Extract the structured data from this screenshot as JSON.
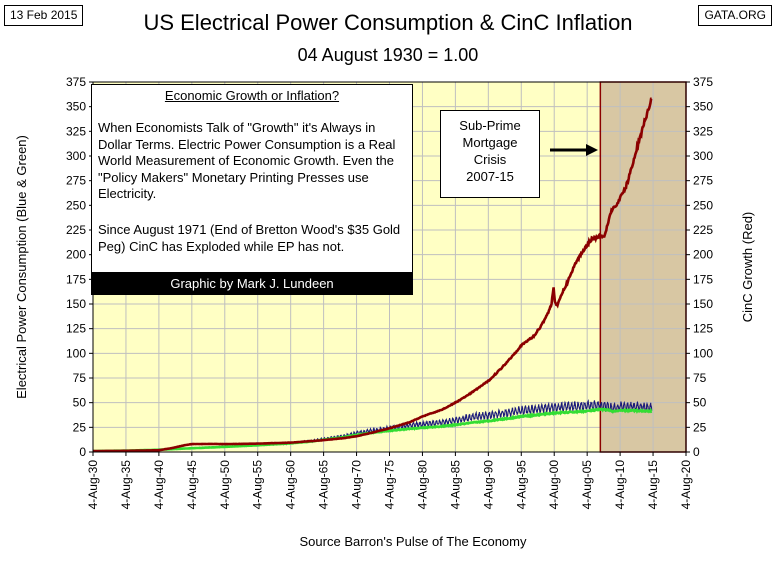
{
  "header": {
    "date": "13 Feb 2015",
    "site": "GATA.ORG",
    "title": "US Electrical Power Consumption & CinC Inflation",
    "subtitle": "04 August 1930 = 1.00"
  },
  "annotations": {
    "info_heading": "Economic Growth or Inflation?",
    "info_paragraph_1": "When Economists Talk of \"Growth\" it's Always in Dollar Terms.  Electric Power Consumption is a Real World Measurement of Economic Growth.  Even the \"Policy Makers\" Monetary Printing Presses use Electricity.",
    "info_paragraph_2": "Since August 1971 (End of Bretton Wood's $35 Gold Peg) CinC has Exploded while EP has not.",
    "credit": "Graphic by Mark J. Lundeen",
    "crisis_lines": [
      "Sub-Prime",
      "Mortgage",
      "Crisis",
      "2007-15"
    ]
  },
  "colors": {
    "plot_background": "#ffffc4",
    "shaded_region": "#d8c7a3",
    "cinc": "#8b0000",
    "ep_blue": "#1a1a7a",
    "ep_green": "#33dd33"
  },
  "chart_data": {
    "type": "line",
    "xlabel": "Source Barron's Pulse of The Economy",
    "ylabel_left": "Electrical Power Consumption  (Blue & Green)",
    "ylabel_right": "CinC Growth (Red)",
    "xlim": [
      1930,
      2020
    ],
    "ylim": [
      0,
      375
    ],
    "y_ticks": [
      0,
      25,
      50,
      75,
      100,
      125,
      150,
      175,
      200,
      225,
      250,
      275,
      300,
      325,
      350,
      375
    ],
    "x_ticks": [
      {
        "x": 1930,
        "label": "4-Aug-30"
      },
      {
        "x": 1935,
        "label": "4-Aug-35"
      },
      {
        "x": 1940,
        "label": "4-Aug-40"
      },
      {
        "x": 1945,
        "label": "4-Aug-45"
      },
      {
        "x": 1950,
        "label": "4-Aug-50"
      },
      {
        "x": 1955,
        "label": "4-Aug-55"
      },
      {
        "x": 1960,
        "label": "4-Aug-60"
      },
      {
        "x": 1965,
        "label": "4-Aug-65"
      },
      {
        "x": 1970,
        "label": "4-Aug-70"
      },
      {
        "x": 1975,
        "label": "4-Aug-75"
      },
      {
        "x": 1980,
        "label": "4-Aug-80"
      },
      {
        "x": 1985,
        "label": "4-Aug-85"
      },
      {
        "x": 1990,
        "label": "4-Aug-90"
      },
      {
        "x": 1995,
        "label": "4-Aug-95"
      },
      {
        "x": 2000,
        "label": "4-Aug-00"
      },
      {
        "x": 2005,
        "label": "4-Aug-05"
      },
      {
        "x": 2010,
        "label": "4-Aug-10"
      },
      {
        "x": 2015,
        "label": "4-Aug-15"
      },
      {
        "x": 2020,
        "label": "4-Aug-20"
      }
    ],
    "grid": true,
    "shaded_region": {
      "x_start": 2007.0,
      "x_end": 2020.0
    },
    "series": [
      {
        "key": "cinc",
        "values": [
          [
            1930,
            1.0
          ],
          [
            1935,
            1.2
          ],
          [
            1940,
            1.8
          ],
          [
            1942,
            4.0
          ],
          [
            1944,
            7.0
          ],
          [
            1945,
            8.0
          ],
          [
            1948,
            8.2
          ],
          [
            1950,
            8.0
          ],
          [
            1955,
            8.5
          ],
          [
            1960,
            9.5
          ],
          [
            1965,
            12.0
          ],
          [
            1968,
            14.0
          ],
          [
            1970,
            16.0
          ],
          [
            1972,
            19.0
          ],
          [
            1975,
            24.0
          ],
          [
            1978,
            30.0
          ],
          [
            1980,
            36.0
          ],
          [
            1983,
            43.0
          ],
          [
            1985,
            50.0
          ],
          [
            1987,
            58.0
          ],
          [
            1990,
            72.0
          ],
          [
            1992,
            85.0
          ],
          [
            1994,
            100.0
          ],
          [
            1995,
            108.0
          ],
          [
            1997,
            118.0
          ],
          [
            1998,
            128.0
          ],
          [
            1999,
            140.0
          ],
          [
            1999.6,
            150.0
          ],
          [
            1999.9,
            168.0
          ],
          [
            2000.1,
            152.0
          ],
          [
            2000.5,
            148.0
          ],
          [
            2001,
            158.0
          ],
          [
            2002,
            172.0
          ],
          [
            2003,
            188.0
          ],
          [
            2004,
            200.0
          ],
          [
            2005,
            210.0
          ],
          [
            2005.8,
            217.0
          ],
          [
            2006.5,
            217.0
          ],
          [
            2007.0,
            220.0
          ],
          [
            2007.5,
            218.0
          ],
          [
            2008.0,
            228.0
          ],
          [
            2008.5,
            242.0
          ],
          [
            2009.0,
            248.0
          ],
          [
            2009.5,
            250.0
          ],
          [
            2010.0,
            257.0
          ],
          [
            2010.7,
            266.0
          ],
          [
            2011.2,
            275.0
          ],
          [
            2011.7,
            287.0
          ],
          [
            2012.2,
            298.0
          ],
          [
            2012.7,
            312.0
          ],
          [
            2013.2,
            322.0
          ],
          [
            2013.7,
            335.0
          ],
          [
            2014.2,
            345.0
          ],
          [
            2014.5,
            350.0
          ],
          [
            2014.8,
            360.0
          ]
        ]
      },
      {
        "key": "ep_blue",
        "values": [
          [
            1930,
            1.0
          ],
          [
            1935,
            1.5
          ],
          [
            1940,
            2.5
          ],
          [
            1945,
            4.0
          ],
          [
            1950,
            5.5
          ],
          [
            1955,
            7.0
          ],
          [
            1960,
            9.0
          ],
          [
            1963,
            11.0
          ],
          [
            1965,
            13.0
          ],
          [
            1968,
            16.0
          ],
          [
            1970,
            19.0
          ],
          [
            1973,
            22.0
          ],
          [
            1975,
            24.0
          ],
          [
            1978,
            27.0
          ],
          [
            1980,
            28.0
          ],
          [
            1983,
            30.0
          ],
          [
            1985,
            32.0
          ],
          [
            1988,
            36.0
          ],
          [
            1990,
            37.0
          ],
          [
            1993,
            40.0
          ],
          [
            1995,
            42.0
          ],
          [
            1998,
            44.0
          ],
          [
            2000,
            45.0
          ],
          [
            2003,
            46.0
          ],
          [
            2005,
            47.0
          ],
          [
            2007,
            47.0
          ],
          [
            2008,
            46.0
          ],
          [
            2009,
            44.0
          ],
          [
            2010,
            46.0
          ],
          [
            2012,
            46.0
          ],
          [
            2014,
            45.0
          ],
          [
            2014.8,
            45.0
          ]
        ]
      },
      {
        "key": "ep_green",
        "values": [
          [
            1930,
            1.0
          ],
          [
            1935,
            1.4
          ],
          [
            1940,
            2.3
          ],
          [
            1945,
            3.8
          ],
          [
            1950,
            5.2
          ],
          [
            1955,
            6.8
          ],
          [
            1960,
            8.8
          ],
          [
            1963,
            10.5
          ],
          [
            1965,
            12.5
          ],
          [
            1968,
            15.0
          ],
          [
            1970,
            17.5
          ],
          [
            1973,
            20.0
          ],
          [
            1975,
            21.5
          ],
          [
            1978,
            23.5
          ],
          [
            1980,
            24.5
          ],
          [
            1983,
            26.0
          ],
          [
            1985,
            27.5
          ],
          [
            1988,
            30.0
          ],
          [
            1990,
            31.5
          ],
          [
            1993,
            34.0
          ],
          [
            1995,
            36.0
          ],
          [
            1998,
            38.0
          ],
          [
            2000,
            39.5
          ],
          [
            2003,
            40.5
          ],
          [
            2005,
            41.5
          ],
          [
            2007,
            43.0
          ],
          [
            2008,
            43.0
          ],
          [
            2009,
            41.0
          ],
          [
            2010,
            42.0
          ],
          [
            2012,
            42.0
          ],
          [
            2014,
            41.5
          ],
          [
            2014.8,
            41.5
          ]
        ]
      }
    ]
  }
}
